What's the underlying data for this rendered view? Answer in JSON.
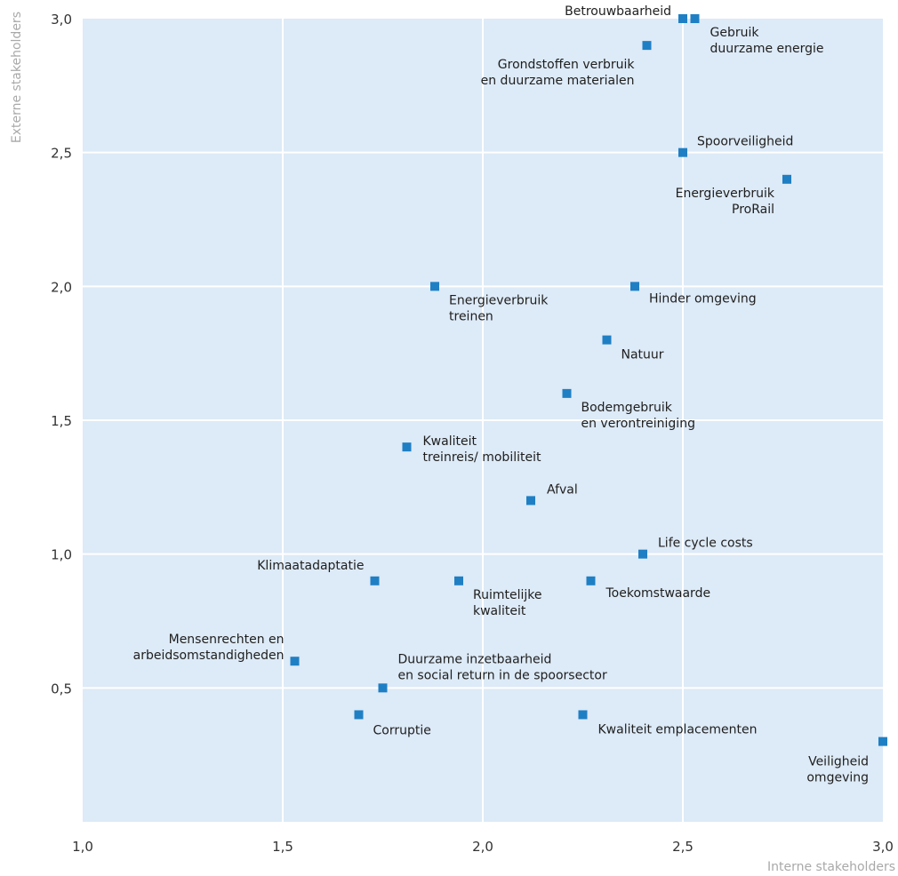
{
  "chart_data": {
    "type": "scatter",
    "xlabel": "Interne stakeholders",
    "ylabel": "Externe stakeholders",
    "xlim": [
      1.0,
      3.0
    ],
    "ylim": [
      0.0,
      3.0
    ],
    "x_ticks": [
      "1,0",
      "1,5",
      "2,0",
      "2,5",
      "3,0"
    ],
    "y_ticks": [
      "0,5",
      "1,0",
      "1,5",
      "2,0",
      "2,5",
      "3,0"
    ],
    "grid": true,
    "colors": {
      "plot_background": "#ddeaf7",
      "marker": "#1f7fc4",
      "grid": "#ffffff"
    },
    "points": [
      {
        "label": "Betrouwbaarheid",
        "x": 2.5,
        "y": 3.0
      },
      {
        "label": "Gebruik duurzame energie",
        "x": 2.53,
        "y": 3.0
      },
      {
        "label": "Grondstoffen verbruik en duurzame materialen",
        "x": 2.41,
        "y": 2.9
      },
      {
        "label": "Spoorveiligheid",
        "x": 2.5,
        "y": 2.5
      },
      {
        "label": "Energieverbruik ProRail",
        "x": 2.76,
        "y": 2.4
      },
      {
        "label": "Energieverbruik treinen",
        "x": 1.88,
        "y": 2.0
      },
      {
        "label": "Hinder omgeving",
        "x": 2.38,
        "y": 2.0
      },
      {
        "label": "Natuur",
        "x": 2.31,
        "y": 1.8
      },
      {
        "label": "Bodemgebruik en verontreiniging",
        "x": 2.21,
        "y": 1.6
      },
      {
        "label": "Kwaliteit treinreis/ mobiliteit",
        "x": 1.81,
        "y": 1.4
      },
      {
        "label": "Afval",
        "x": 2.12,
        "y": 1.2
      },
      {
        "label": "Life cycle costs",
        "x": 2.4,
        "y": 1.0
      },
      {
        "label": "Klimaatadaptatie",
        "x": 1.73,
        "y": 0.9
      },
      {
        "label": "Ruimtelijke kwaliteit",
        "x": 1.94,
        "y": 0.9
      },
      {
        "label": "Toekomstwaarde",
        "x": 2.27,
        "y": 0.9
      },
      {
        "label": "Mensenrechten en arbeidsomstandigheden",
        "x": 1.53,
        "y": 0.6
      },
      {
        "label": "Duurzame inzetbaarheid en social return in de spoorsector",
        "x": 1.75,
        "y": 0.5
      },
      {
        "label": "Corruptie",
        "x": 1.69,
        "y": 0.4
      },
      {
        "label": "Kwaliteit emplacementen",
        "x": 2.25,
        "y": 0.4
      },
      {
        "label": "Veiligheid omgeving",
        "x": 3.0,
        "y": 0.3
      }
    ]
  }
}
